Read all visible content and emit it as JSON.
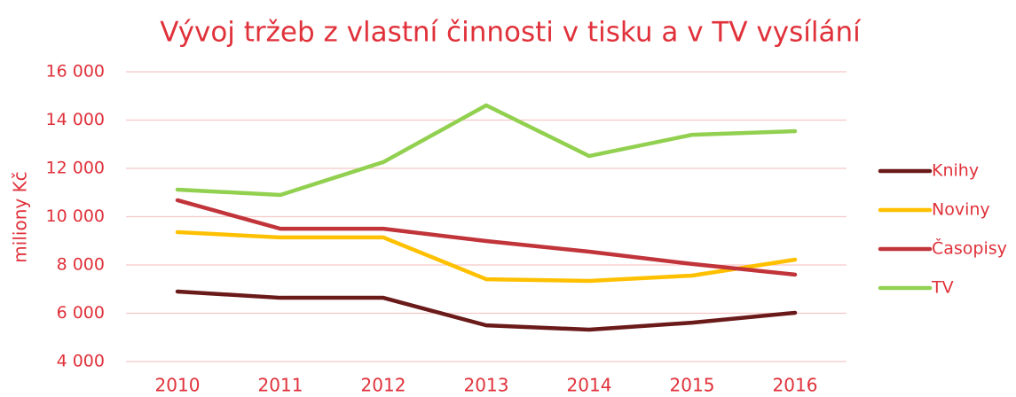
{
  "chart_data": {
    "type": "line",
    "title": "Vývoj tržeb z vlastní činnosti v tisku a v TV vysílání",
    "y_label": "miliony Kč",
    "categories": [
      "2010",
      "2011",
      "2012",
      "2013",
      "2014",
      "2015",
      "2016"
    ],
    "series": [
      {
        "name": "Knihy",
        "color": "#6b1a1a",
        "values": [
          6900,
          6640,
          6640,
          5500,
          5320,
          5610,
          6020
        ]
      },
      {
        "name": "Noviny",
        "color": "#ffc000",
        "values": [
          9360,
          9140,
          9140,
          7410,
          7340,
          7560,
          8220
        ]
      },
      {
        "name": "Časopisy",
        "color": "#c0343a",
        "values": [
          10680,
          9500,
          9500,
          8990,
          8550,
          8040,
          7600
        ]
      },
      {
        "name": "TV",
        "color": "#92d050",
        "values": [
          11120,
          10900,
          12260,
          14610,
          12510,
          13390,
          13540
        ]
      }
    ],
    "ylim": [
      4000,
      16000
    ],
    "yticks": [
      {
        "value": 4000,
        "label": "4 000"
      },
      {
        "value": 6000,
        "label": "6 000"
      },
      {
        "value": 8000,
        "label": "8 000"
      },
      {
        "value": 10000,
        "label": "10 000"
      },
      {
        "value": 12000,
        "label": "12 000"
      },
      {
        "value": 14000,
        "label": "14 000"
      },
      {
        "value": 16000,
        "label": "16 000"
      }
    ],
    "grid": true,
    "legend": "right"
  }
}
